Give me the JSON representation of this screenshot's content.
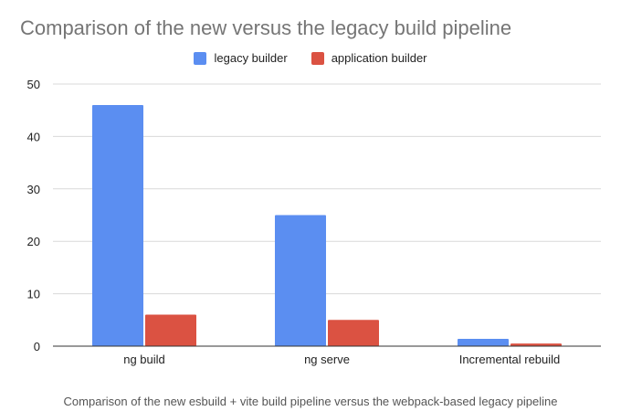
{
  "title": "Comparison of the new versus the legacy build pipeline",
  "caption": "Comparison of the new esbuild + vite build pipeline versus the webpack-based legacy pipeline",
  "colors": {
    "legacy": "#5b8ef1",
    "application": "#db5242",
    "grid": "#d9d9d9",
    "axis": "#333333",
    "text": "#222222"
  },
  "chart_data": {
    "type": "bar",
    "title": "Comparison of the new versus the legacy build pipeline",
    "categories": [
      "ng build",
      "ng serve",
      "Incremental rebuild"
    ],
    "series": [
      {
        "name": "legacy builder",
        "values": [
          46,
          25,
          1.4
        ]
      },
      {
        "name": "application builder",
        "values": [
          6,
          5,
          0.5
        ]
      }
    ],
    "xlabel": "",
    "ylabel": "",
    "ylim": [
      0,
      50
    ],
    "yticks": [
      0,
      10,
      20,
      30,
      40,
      50
    ],
    "grid": true,
    "legend": "top-center"
  }
}
